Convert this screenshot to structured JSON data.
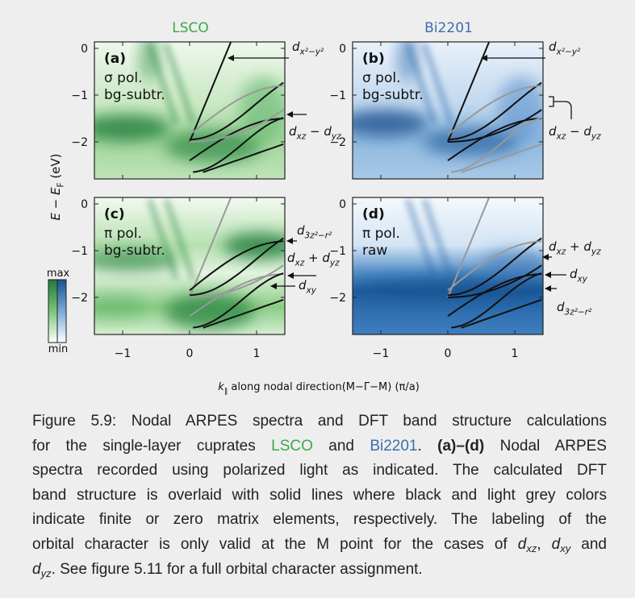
{
  "figure": {
    "column_titles": [
      "LSCO",
      "Bi2201"
    ],
    "y_axis_label": [
      "E − E",
      "F",
      " (eV)"
    ],
    "x_axis_label": [
      "k",
      "∥",
      " along nodal direction(M−Γ−M) (π/a)"
    ],
    "y_ticks": [
      "0",
      "−1",
      "−2"
    ],
    "x_ticks": [
      "−1",
      "0",
      "1"
    ],
    "colorbar": {
      "max": "max",
      "min": "min"
    },
    "panels": [
      {
        "label": "(a)",
        "lines": [
          "σ pol.",
          "bg-subtr."
        ],
        "annotations": [
          [
            "d",
            "x²−y²"
          ],
          [
            "d",
            "xz",
            " − d",
            "yz"
          ]
        ]
      },
      {
        "label": "(b)",
        "lines": [
          "σ pol.",
          "bg-subtr."
        ],
        "annotations": [
          [
            "d",
            "x²−y²"
          ],
          [
            "d",
            "xz",
            " − d",
            "yz"
          ]
        ]
      },
      {
        "label": "(c)",
        "lines": [
          "π pol.",
          "bg-subtr."
        ],
        "annotations": [
          [
            "d",
            "3z²−r²"
          ],
          [
            "d",
            "xz",
            " + d",
            "yz"
          ],
          [
            "d",
            "xy"
          ]
        ]
      },
      {
        "label": "(d)",
        "lines": [
          "π pol.",
          "raw"
        ],
        "annotations": [
          [
            "d",
            "xz",
            " + d",
            "yz"
          ],
          [
            "d",
            "xy"
          ],
          [
            "d",
            "3z²−r²"
          ]
        ]
      }
    ]
  },
  "caption": {
    "lines": [
      [
        "Figure 5.9: Nodal ARPES spectra and DFT band structure calculations"
      ],
      [
        "for the single-layer cuprates ",
        "LSCO",
        " and ",
        "Bi2201",
        ". ",
        "(a)–(d)",
        " Nodal ARPES"
      ],
      [
        "spectra recorded using polarized light as indicated. The calculated DFT"
      ],
      [
        "band structure is overlaid with solid lines where black and light grey colors"
      ],
      [
        "indicate finite or zero matrix elements, respectively. The labeling of the"
      ],
      [
        "orbital character is only valid at the M point for the cases of ",
        "d",
        "xz",
        ", ",
        "d",
        "xy",
        " and"
      ],
      [
        "d",
        "yz",
        ". See figure 5.11 for a full orbital character assignment."
      ]
    ]
  }
}
